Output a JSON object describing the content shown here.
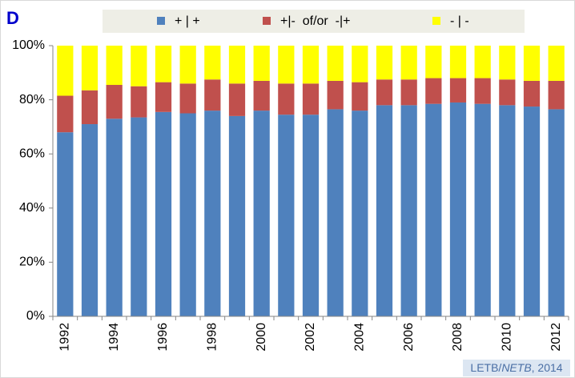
{
  "panel_label": "D",
  "source": [
    "LETB/",
    "NETB",
    ", 2014"
  ],
  "chart_data": {
    "type": "stacked_bar",
    "categories": [
      "1992",
      null,
      "1994",
      null,
      "1996",
      null,
      "1998",
      null,
      "2000",
      null,
      "2002",
      null,
      "2004",
      null,
      "2006",
      null,
      "2008",
      null,
      "2010",
      null,
      "2012"
    ],
    "series": [
      {
        "name": "+ | +",
        "color": "#4f81bd",
        "values": [
          68,
          71,
          73,
          73.5,
          75.5,
          75,
          76,
          74,
          76,
          74.5,
          74.5,
          76.5,
          76,
          78,
          78,
          78.5,
          79,
          78.5,
          78,
          77.5,
          76.5
        ]
      },
      {
        "name": "+|-  of/or  -|+",
        "color": "#c0504d",
        "values": [
          13.5,
          12.5,
          12.5,
          11.5,
          11,
          11,
          11.5,
          12,
          11,
          11.5,
          11.5,
          10.5,
          10.5,
          9.5,
          9.5,
          9.5,
          9,
          9.5,
          9.5,
          9.5,
          10.5
        ]
      },
      {
        "name": "- | -",
        "color": "#ffff00",
        "values": [
          18.5,
          16.5,
          14.5,
          15,
          13.5,
          14,
          12.5,
          14,
          13,
          14,
          14,
          13,
          13.5,
          12.5,
          12.5,
          12,
          12,
          12,
          12.5,
          13,
          13
        ]
      }
    ],
    "ylim": [
      0,
      100
    ],
    "yticks": [
      {
        "value": 0,
        "label": "0%"
      },
      {
        "value": 20,
        "label": "20%"
      },
      {
        "value": 40,
        "label": "40%"
      },
      {
        "value": 60,
        "label": "60%"
      },
      {
        "value": 80,
        "label": "80%"
      },
      {
        "value": 100,
        "label": "100%"
      }
    ],
    "legend": "top"
  }
}
